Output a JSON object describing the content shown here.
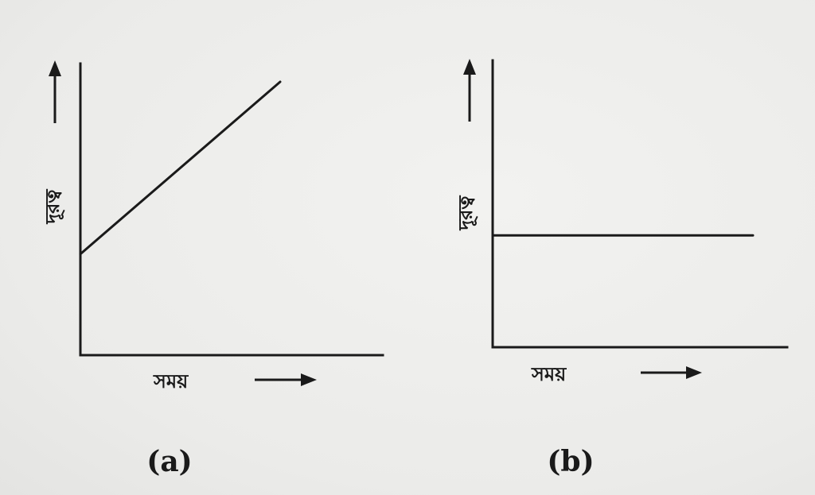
{
  "chart_data": [
    {
      "type": "line",
      "panel_label": "(a)",
      "xlabel": "সময়",
      "ylabel": "দূরত্ব",
      "series": [
        {
          "x": [
            0,
            1
          ],
          "y": [
            0.37,
            1.0
          ]
        }
      ],
      "xlim": [
        0,
        1
      ],
      "ylim": [
        0,
        1
      ],
      "grid": false
    },
    {
      "type": "line",
      "panel_label": "(b)",
      "xlabel": "সময়",
      "ylabel": "দূরত্ব",
      "series": [
        {
          "x": [
            0,
            1
          ],
          "y": [
            0.39,
            0.39
          ]
        }
      ],
      "xlim": [
        0,
        1
      ],
      "ylim": [
        0,
        1
      ],
      "grid": false
    }
  ]
}
